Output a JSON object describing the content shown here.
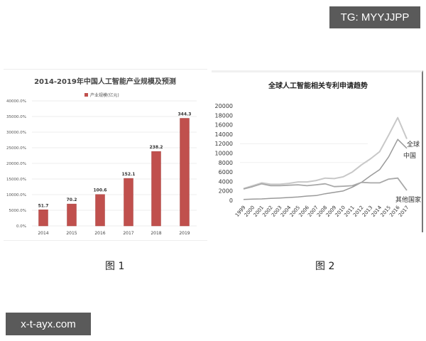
{
  "watermarks": {
    "top_right": "TG: MYYJJPP",
    "bottom_left": "x-t-ayx.com"
  },
  "captions": {
    "figure1": "图 1",
    "figure2": "图 2"
  },
  "colors": {
    "bar": "#c0504d",
    "line_global": "#c8c8c8",
    "line_china": "#9a9a9a",
    "line_other": "#a8a8a8",
    "watermark_bg": "#5a5a5a"
  },
  "chart_data": [
    {
      "type": "bar",
      "title": "2014-2019年中国人工智能产业规模及预测",
      "legend": [
        "产业规模(亿元)"
      ],
      "legend_position": "top",
      "categories": [
        "2014",
        "2015",
        "2016",
        "2017",
        "2018",
        "2019"
      ],
      "values": [
        51.7,
        70.2,
        100.6,
        152.1,
        238.2,
        344.3
      ],
      "data_labels": [
        "51.7",
        "70.2",
        "100.6",
        "152.1",
        "238.2",
        "344.3"
      ],
      "xlabel": "",
      "ylabel": "",
      "y_ticks": [
        "0.0%",
        "5000.0%",
        "10000.0%",
        "15000.0%",
        "20000.0%",
        "25000.0%",
        "30000.0%",
        "35000.0%",
        "40000.0%"
      ],
      "ylim": [
        0,
        40000
      ],
      "grid": true
    },
    {
      "type": "line",
      "title": "全球人工智能相关专利申请趋势",
      "x": [
        "1999",
        "2000",
        "2001",
        "2002",
        "2003",
        "2004",
        "2005",
        "2006",
        "2007",
        "2008",
        "2009",
        "2010",
        "2011",
        "2012",
        "2013",
        "2014",
        "2015",
        "2016",
        "2017"
      ],
      "series": [
        {
          "name": "全球",
          "values": [
            2500,
            3100,
            3700,
            3400,
            3400,
            3600,
            3900,
            3900,
            4200,
            4700,
            4600,
            5000,
            6000,
            7500,
            8800,
            10300,
            13800,
            17500,
            13000
          ]
        },
        {
          "name": "中国",
          "values": [
            200,
            250,
            300,
            400,
            500,
            600,
            700,
            900,
            1000,
            1400,
            1700,
            2000,
            2800,
            3800,
            5200,
            6500,
            9200,
            12900,
            11000
          ]
        },
        {
          "name": "其他国家",
          "values": [
            2400,
            2900,
            3500,
            3100,
            3100,
            3200,
            3300,
            3100,
            3300,
            3500,
            2900,
            3000,
            3100,
            3800,
            3700,
            3700,
            4500,
            4700,
            2100
          ]
        }
      ],
      "y_ticks": [
        "0",
        "2000",
        "4000",
        "6000",
        "8000",
        "10000",
        "12000",
        "14000",
        "16000",
        "18000",
        "20000"
      ],
      "ylim": [
        0,
        20000
      ],
      "xlabel": "",
      "ylabel": "",
      "legend_position": "inline-right",
      "grid": true
    }
  ]
}
